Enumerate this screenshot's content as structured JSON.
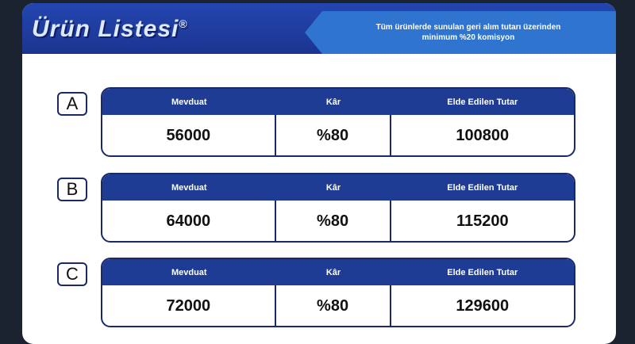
{
  "header": {
    "title": "Ürün Listesi",
    "title_mark": "®",
    "banner_line1": "Tüm ürünlerde sunulan geri alım tutarı üzerinden",
    "banner_line2": "minimum %20 komisyon"
  },
  "columns": [
    "Mevduat",
    "Kâr",
    "Elde Edilen Tutar"
  ],
  "products": [
    {
      "letter": "A",
      "deposit": "56000",
      "profit": "%80",
      "total": "100800"
    },
    {
      "letter": "B",
      "deposit": "64000",
      "profit": "%80",
      "total": "115200"
    },
    {
      "letter": "C",
      "deposit": "72000",
      "profit": "%80",
      "total": "129600"
    }
  ],
  "colors": {
    "header": "#1e3c94",
    "banner": "#2f74cf",
    "background": "#1b2331"
  }
}
